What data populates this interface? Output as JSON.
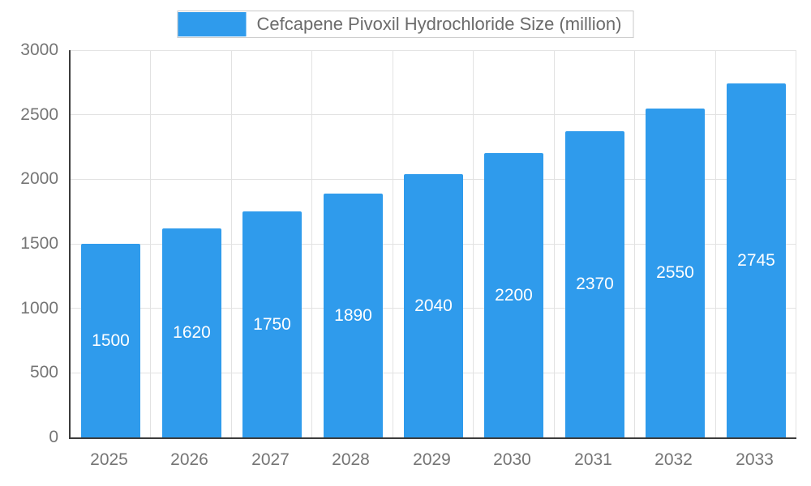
{
  "chart_data": {
    "type": "bar",
    "title": "Cefcapene Pivoxil Hydrochloride Size (million)",
    "categories": [
      "2025",
      "2026",
      "2027",
      "2028",
      "2029",
      "2030",
      "2031",
      "2032",
      "2033"
    ],
    "values": [
      1500,
      1620,
      1750,
      1890,
      2040,
      2200,
      2370,
      2550,
      2745
    ],
    "xlabel": "",
    "ylabel": "",
    "ylim": [
      0,
      3000
    ],
    "yticks": [
      0,
      500,
      1000,
      1500,
      2000,
      2500,
      3000
    ],
    "grid": true,
    "legend_position": "top",
    "bar_labels": true
  },
  "colors": {
    "bar": "#2F9BEC",
    "grid": "#e2e2e2",
    "axis": "#3c3c3c",
    "tick_text": "#757575",
    "legend_text": "#6b6b6b",
    "bar_label_text": "#ffffff",
    "background": "#ffffff"
  }
}
